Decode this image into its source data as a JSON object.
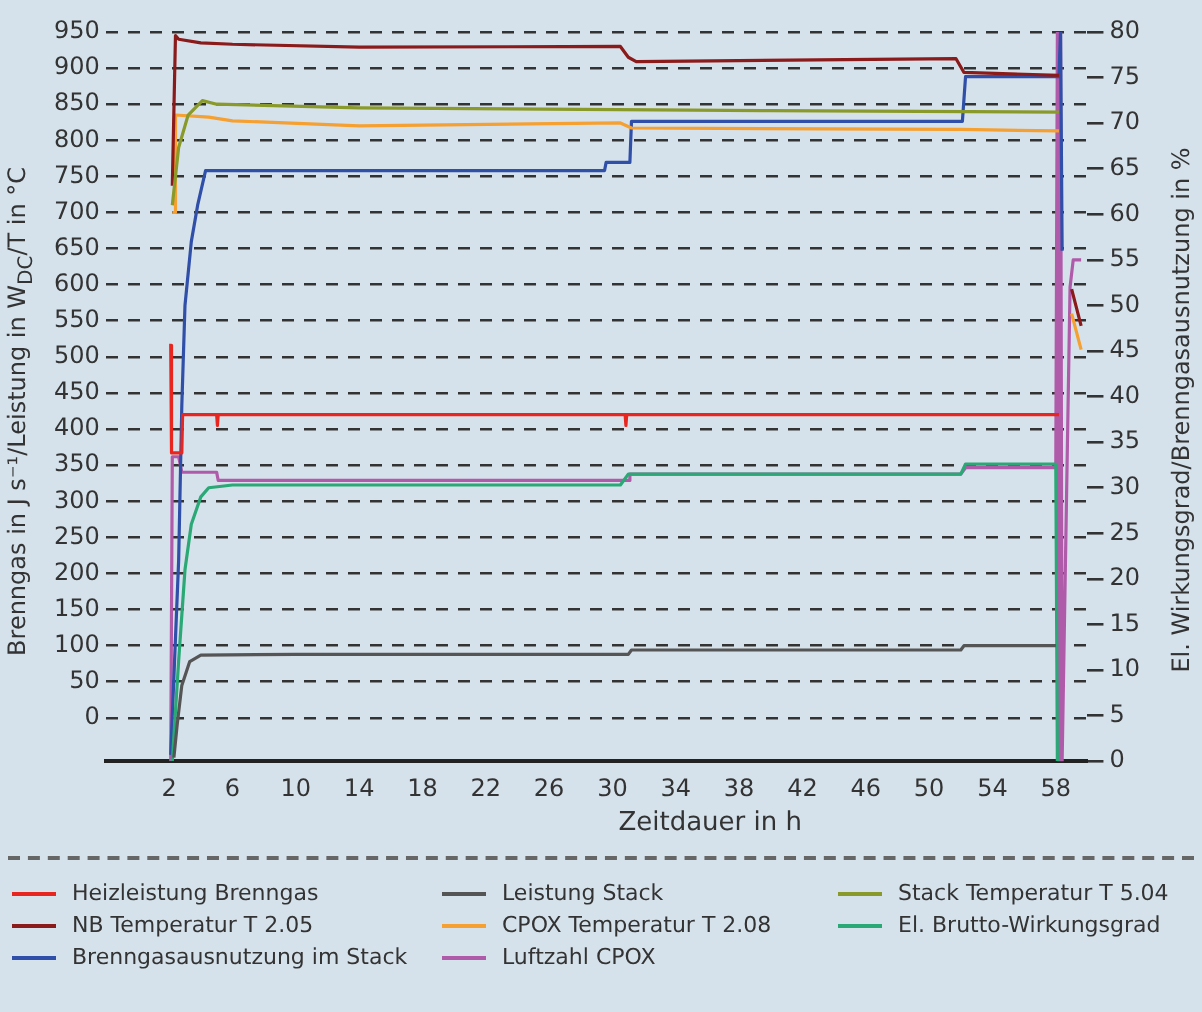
{
  "chart_data": {
    "type": "line",
    "xlabel": "Zeitdauer in h",
    "ylabel": "Brenngas in J s⁻¹/Leistung in W$_{DC}$/T in °C",
    "y2label": "El. Wirkungsgrad/Brenngasausnutzung in %",
    "xlim": [
      -2,
      60
    ],
    "xticks": [
      2,
      6,
      10,
      14,
      18,
      22,
      26,
      30,
      34,
      38,
      42,
      46,
      50,
      54,
      58
    ],
    "ylim": [
      -60,
      950
    ],
    "yticks": [
      0,
      50,
      100,
      150,
      200,
      250,
      300,
      350,
      400,
      450,
      500,
      550,
      600,
      650,
      700,
      750,
      800,
      850,
      900,
      950
    ],
    "y2lim": [
      0,
      80
    ],
    "y2ticks": [
      0,
      5,
      10,
      15,
      20,
      25,
      30,
      35,
      40,
      45,
      50,
      55,
      60,
      65,
      70,
      75,
      80
    ],
    "grid": "y",
    "legend": "bottom",
    "marker": "none",
    "line_style": "solid",
    "series": [
      {
        "name": "Heizleistung Brenngas",
        "color": "#e8251f",
        "x": [
          2.0,
          2.1,
          2.15,
          2.8,
          2.85,
          5.0,
          5.05,
          5.1,
          30.8,
          30.85,
          30.9,
          58.2
        ],
        "values": [
          516,
          516,
          367,
          367,
          420,
          420,
          405,
          420,
          420,
          405,
          420,
          420
        ]
      },
      {
        "name": "Leistung Stack",
        "color": "#555555",
        "x": [
          2.3,
          2.5,
          2.8,
          3.3,
          4.0,
          10,
          31.0,
          31.2,
          52.0,
          52.2,
          58.0
        ],
        "values": [
          -55,
          -11,
          45,
          78,
          87,
          88,
          88,
          94,
          94,
          100,
          100
        ]
      },
      {
        "name": "Stack Temperatur T 5.04",
        "color": "#8a9a2a",
        "x": [
          2.2,
          2.6,
          3.2,
          4.1,
          5,
          14,
          40,
          58.2
        ],
        "values": [
          710,
          790,
          835,
          855,
          850,
          845,
          841,
          839
        ]
      },
      {
        "name": "NB Temperatur T 2.05",
        "color": "#8b1a1a",
        "x": [
          2.2,
          2.4,
          2.6,
          4.0,
          6.0,
          14,
          30.5,
          31.0,
          31.5,
          51.7,
          52.2,
          58.2,
          58.5,
          59.0,
          59.6
        ],
        "values": [
          737,
          945,
          940,
          935,
          933,
          929,
          930,
          915,
          909,
          913,
          894,
          890,
          null,
          594,
          543
        ]
      },
      {
        "name": "CPOX Temperatur T 2.08",
        "color": "#f5a030",
        "x": [
          2.2,
          2.35,
          2.4,
          4.5,
          6,
          14,
          30.5,
          31.2,
          52,
          58.2,
          58.5,
          59.0,
          59.6
        ],
        "values": [
          700,
          700,
          835,
          832,
          827,
          820,
          824,
          817,
          815,
          813,
          null,
          560,
          510
        ]
      },
      {
        "name": "El. Brutto-Wirkungsgrad",
        "color": "#2aa876",
        "axis": "y2",
        "x": [
          2.2,
          2.6,
          3.0,
          3.4,
          4.0,
          4.5,
          6,
          30.5,
          31.0,
          52.0,
          52.3,
          58.0,
          58.1
        ],
        "values": [
          0,
          11,
          21,
          26,
          29,
          30,
          30.3,
          30.3,
          31.5,
          31.5,
          32.6,
          32.6,
          0
        ]
      },
      {
        "name": "Brenngasausnutzung im Stack",
        "color": "#2f4fa8",
        "axis": "y2",
        "x": [
          2.1,
          2.6,
          2.8,
          3.0,
          3.4,
          3.8,
          4.3,
          29.5,
          29.6,
          31.1,
          31.2,
          52.1,
          52.3,
          58.2,
          58.3,
          58.4
        ],
        "values": [
          0.7,
          22,
          39,
          50,
          57,
          61,
          64.8,
          64.8,
          65.7,
          65.7,
          70.2,
          70.2,
          75.1,
          75.1,
          80,
          56
        ]
      },
      {
        "name": "Luftzahl CPOX",
        "color": "#b05aaa",
        "axis": "y2",
        "x": [
          2.1,
          2.2,
          2.6,
          2.8,
          5.0,
          5.1,
          31.0,
          31.1,
          52.0,
          52.3,
          58.0,
          58.1,
          58.2,
          58.3,
          58.4,
          58.9,
          59.1,
          59.6
        ],
        "values": [
          0,
          33.4,
          33.4,
          31.7,
          31.7,
          30.8,
          30.8,
          31.5,
          31.5,
          32.2,
          32.2,
          80,
          0,
          80,
          0,
          52,
          55,
          55
        ]
      }
    ]
  }
}
